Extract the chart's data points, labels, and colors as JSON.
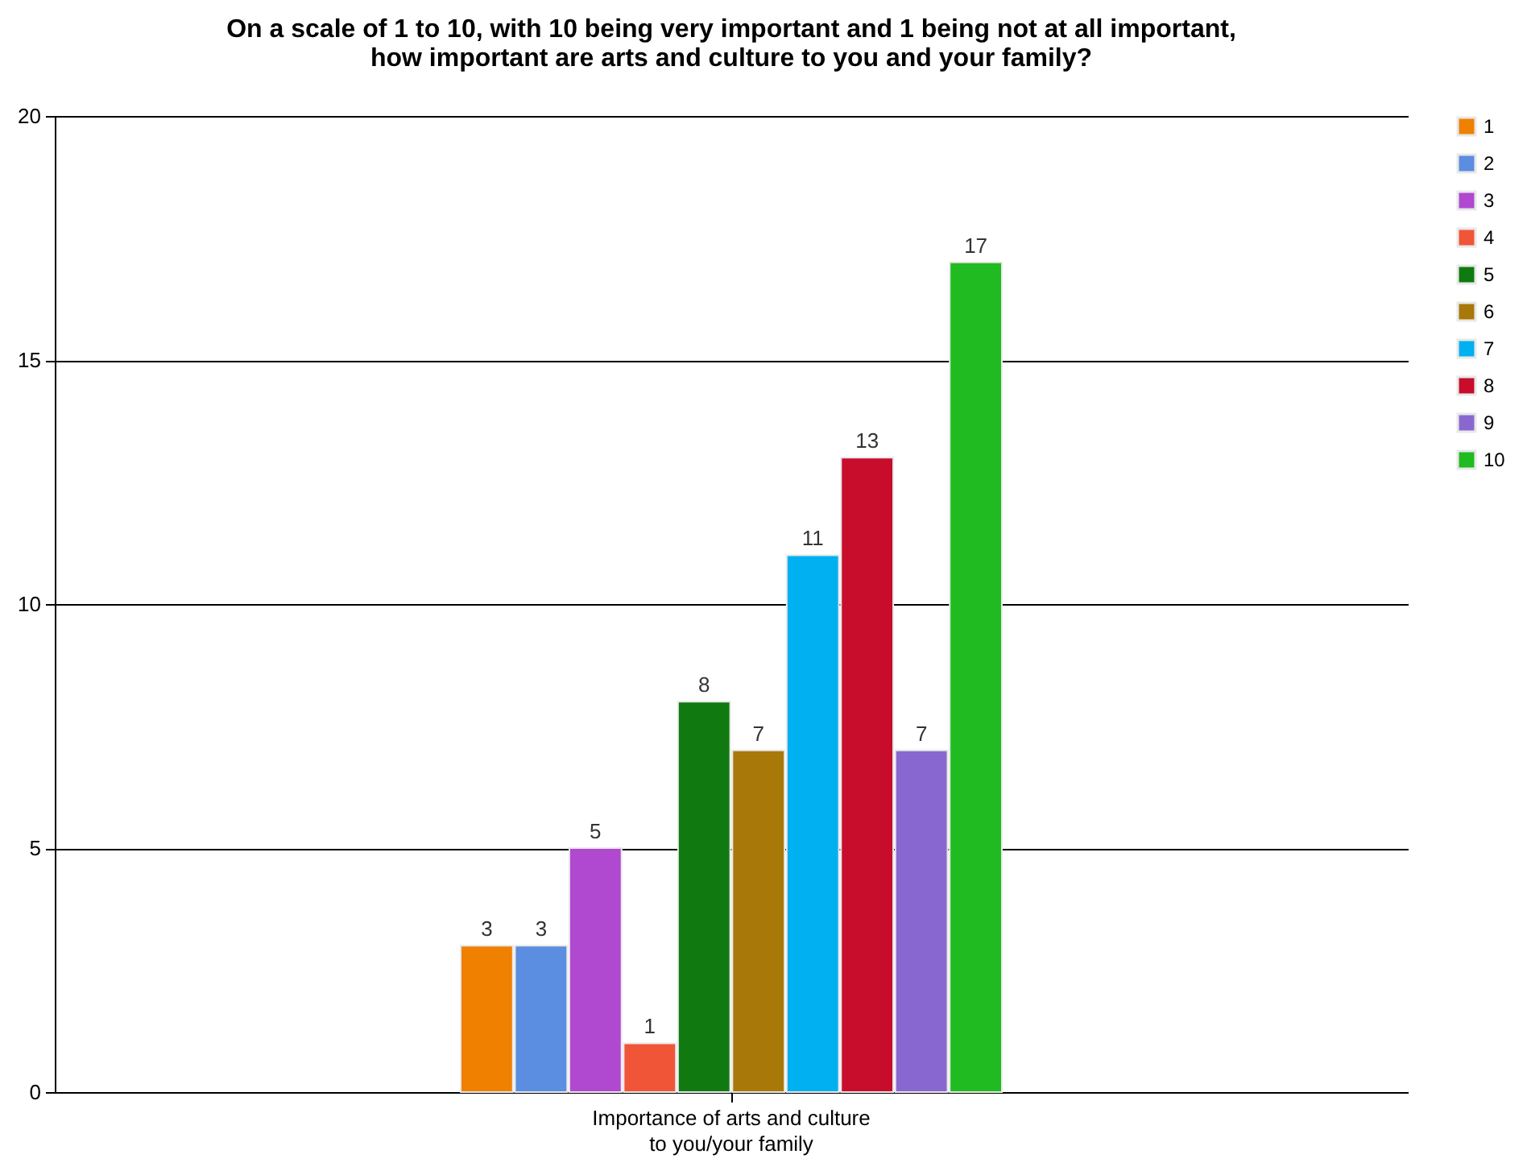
{
  "chart_data": {
    "type": "bar",
    "title": [
      "On a scale of 1 to 10, with 10 being very important and 1 being not at all important,",
      "how important are arts and culture to you and your family?"
    ],
    "categories": [
      "Importance of arts and culture to you/your family"
    ],
    "series": [
      {
        "name": "1",
        "color": "#f08000",
        "values": [
          3
        ]
      },
      {
        "name": "2",
        "color": "#5b8de0",
        "values": [
          3
        ]
      },
      {
        "name": "3",
        "color": "#b048d0",
        "values": [
          5
        ]
      },
      {
        "name": "4",
        "color": "#f05538",
        "values": [
          1
        ]
      },
      {
        "name": "5",
        "color": "#107a10",
        "values": [
          8
        ]
      },
      {
        "name": "6",
        "color": "#a87808",
        "values": [
          7
        ]
      },
      {
        "name": "7",
        "color": "#00b0f0",
        "values": [
          11
        ]
      },
      {
        "name": "8",
        "color": "#c80c2c",
        "values": [
          13
        ]
      },
      {
        "name": "9",
        "color": "#8868d0",
        "values": [
          7
        ]
      },
      {
        "name": "10",
        "color": "#20bb20",
        "values": [
          17
        ]
      }
    ],
    "ylim": [
      0,
      20
    ],
    "yticks": [
      0,
      5,
      10,
      15,
      20
    ],
    "grid": "y",
    "legend": "right",
    "data_labels": true
  }
}
